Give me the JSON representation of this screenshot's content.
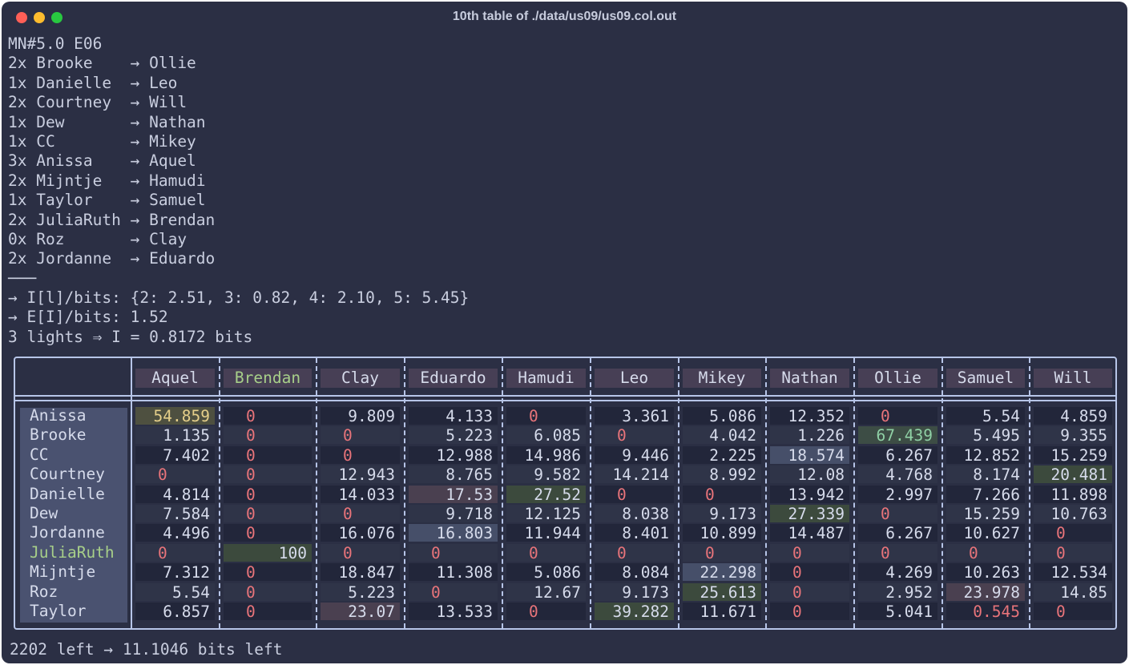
{
  "window": {
    "title": "10th table of ./data/us09/us09.col.out"
  },
  "log": {
    "lines": [
      "MN#5.0 E06",
      "2x Brooke    → Ollie",
      "1x Danielle  → Leo",
      "2x Courtney  → Will",
      "1x Dew       → Nathan",
      "1x CC        → Mikey",
      "3x Anissa    → Aquel",
      "2x Mijntje   → Hamudi",
      "1x Taylor    → Samuel",
      "2x JuliaRuth → Brendan",
      "0x Roz       → Clay",
      "2x Jordanne  → Eduardo",
      "───",
      "→ I[l]/bits: {2: 2.51, 3: 0.82, 4: 2.10, 5: 5.45}",
      "→ E[I]/bits: 1.52",
      "3 lights ⇒ I = 0.8172 bits"
    ]
  },
  "table": {
    "columns": [
      "Aquel",
      "Brendan",
      "Clay",
      "Eduardo",
      "Hamudi",
      "Leo",
      "Mikey",
      "Nathan",
      "Ollie",
      "Samuel",
      "Will"
    ],
    "highlight_column": "Brendan",
    "rows": [
      {
        "name": "Anissa",
        "values": [
          "54.859",
          "0",
          "9.809",
          "4.133",
          "0",
          "3.361",
          "5.086",
          "12.352",
          "0",
          "5.54",
          "4.859"
        ]
      },
      {
        "name": "Brooke",
        "values": [
          "1.135",
          "0",
          "0",
          "5.223",
          "6.085",
          "0",
          "4.042",
          "1.226",
          "67.439",
          "5.495",
          "9.355"
        ]
      },
      {
        "name": "CC",
        "values": [
          "7.402",
          "0",
          "0",
          "12.988",
          "14.986",
          "9.446",
          "2.225",
          "18.574",
          "6.267",
          "12.852",
          "15.259"
        ]
      },
      {
        "name": "Courtney",
        "values": [
          "0",
          "0",
          "12.943",
          "8.765",
          "9.582",
          "14.214",
          "8.992",
          "12.08",
          "4.768",
          "8.174",
          "20.481"
        ]
      },
      {
        "name": "Danielle",
        "values": [
          "4.814",
          "0",
          "14.033",
          "17.53",
          "27.52",
          "0",
          "0",
          "13.942",
          "2.997",
          "7.266",
          "11.898"
        ]
      },
      {
        "name": "Dew",
        "values": [
          "7.584",
          "0",
          "0",
          "9.718",
          "12.125",
          "8.038",
          "9.173",
          "27.339",
          "0",
          "15.259",
          "10.763"
        ]
      },
      {
        "name": "Jordanne",
        "values": [
          "4.496",
          "0",
          "16.076",
          "16.803",
          "11.944",
          "8.401",
          "10.899",
          "14.487",
          "6.267",
          "10.627",
          "0"
        ]
      },
      {
        "name": "JuliaRuth",
        "values": [
          "0",
          "100",
          "0",
          "0",
          "0",
          "0",
          "0",
          "0",
          "0",
          "0",
          "0"
        ]
      },
      {
        "name": "Mijntje",
        "values": [
          "7.312",
          "0",
          "18.847",
          "11.308",
          "5.086",
          "8.084",
          "22.298",
          "0",
          "4.269",
          "10.263",
          "12.534"
        ]
      },
      {
        "name": "Roz",
        "values": [
          "5.54",
          "0",
          "5.223",
          "0",
          "12.67",
          "9.173",
          "25.613",
          "0",
          "2.952",
          "23.978",
          "14.85"
        ]
      },
      {
        "name": "Taylor",
        "values": [
          "6.857",
          "0",
          "23.07",
          "13.533",
          "0",
          "39.282",
          "11.671",
          "0",
          "5.041",
          "0.545",
          "0"
        ]
      }
    ],
    "highlight_row": "JuliaRuth",
    "special_cells": [
      {
        "row": 0,
        "col": 0,
        "bg": "#4e5040",
        "fg": "#e5cf8a"
      },
      {
        "row": 1,
        "col": 8,
        "bg": "#3d4d45",
        "fg": "#8fd0a5"
      },
      {
        "row": 2,
        "col": 7,
        "bg": "#464f69",
        "fg": "#d6dbeb"
      },
      {
        "row": 3,
        "col": 10,
        "bg": "#3c4a3d",
        "fg": "#d6dbeb"
      },
      {
        "row": 4,
        "col": 3,
        "bg": "#4a4050",
        "fg": "#d6dbeb"
      },
      {
        "row": 4,
        "col": 4,
        "bg": "#3c4a3d",
        "fg": "#d6dbeb"
      },
      {
        "row": 5,
        "col": 7,
        "bg": "#3c4a3d",
        "fg": "#d6dbeb"
      },
      {
        "row": 6,
        "col": 3,
        "bg": "#464f69",
        "fg": "#d6dbeb"
      },
      {
        "row": 7,
        "col": 1,
        "bg": "#3c4a3d",
        "fg": "#d6dbeb"
      },
      {
        "row": 8,
        "col": 6,
        "bg": "#464f69",
        "fg": "#d6dbeb"
      },
      {
        "row": 9,
        "col": 6,
        "bg": "#3c4a3d",
        "fg": "#d6dbeb"
      },
      {
        "row": 9,
        "col": 9,
        "bg": "#4a4050",
        "fg": "#d6dbeb"
      },
      {
        "row": 10,
        "col": 2,
        "bg": "#4a4050",
        "fg": "#d6dbeb"
      },
      {
        "row": 10,
        "col": 5,
        "bg": "#3c4a3d",
        "fg": "#d6dbeb"
      },
      {
        "row": 10,
        "col": 9,
        "bg": "",
        "fg": "#e8747a"
      }
    ],
    "colors": {
      "zero": "#e8747a",
      "stripe_dark": "#22263a",
      "stripe_light": "#2f3448",
      "header_bg": "#473f55",
      "label_bg": "#4a5270",
      "green_text": "#a7cf89"
    }
  },
  "footer": {
    "text": "2202 left → 11.1046 bits left"
  }
}
